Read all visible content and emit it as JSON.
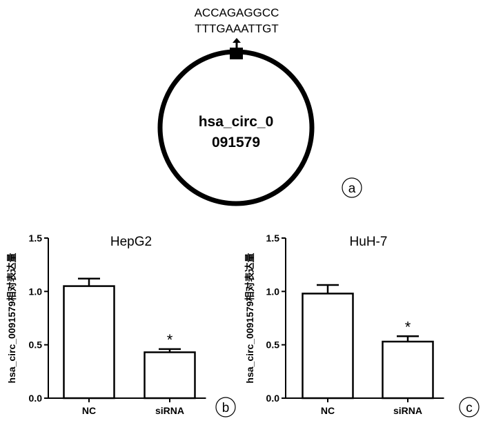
{
  "panel_a": {
    "sequence_line1": "ACCAGAGGCC",
    "sequence_line2": "TTTGAAATTGT",
    "circ_line1": "hsa_circ_0",
    "circ_line2": "091579",
    "panel_label": "a"
  },
  "chart_data": [
    {
      "type": "bar",
      "title": "HepG2",
      "ylabel": "hsa_circ_0091579相对表达量",
      "xlabel": "",
      "categories": [
        "NC",
        "siRNA"
      ],
      "values": [
        1.05,
        0.43
      ],
      "errors": [
        0.07,
        0.03
      ],
      "significance": [
        "",
        "*"
      ],
      "ylim": [
        0,
        1.5
      ],
      "yticks": [
        "0.0",
        "0.5",
        "1.0",
        "1.5"
      ],
      "panel_label": "b"
    },
    {
      "type": "bar",
      "title": "HuH-7",
      "ylabel": "hsa_circ_0091579相对表达量",
      "xlabel": "",
      "categories": [
        "NC",
        "siRNA"
      ],
      "values": [
        0.98,
        0.53
      ],
      "errors": [
        0.08,
        0.05
      ],
      "significance": [
        "",
        "*"
      ],
      "ylim": [
        0,
        1.5
      ],
      "yticks": [
        "0.0",
        "0.5",
        "1.0",
        "1.5"
      ],
      "panel_label": "c"
    }
  ]
}
